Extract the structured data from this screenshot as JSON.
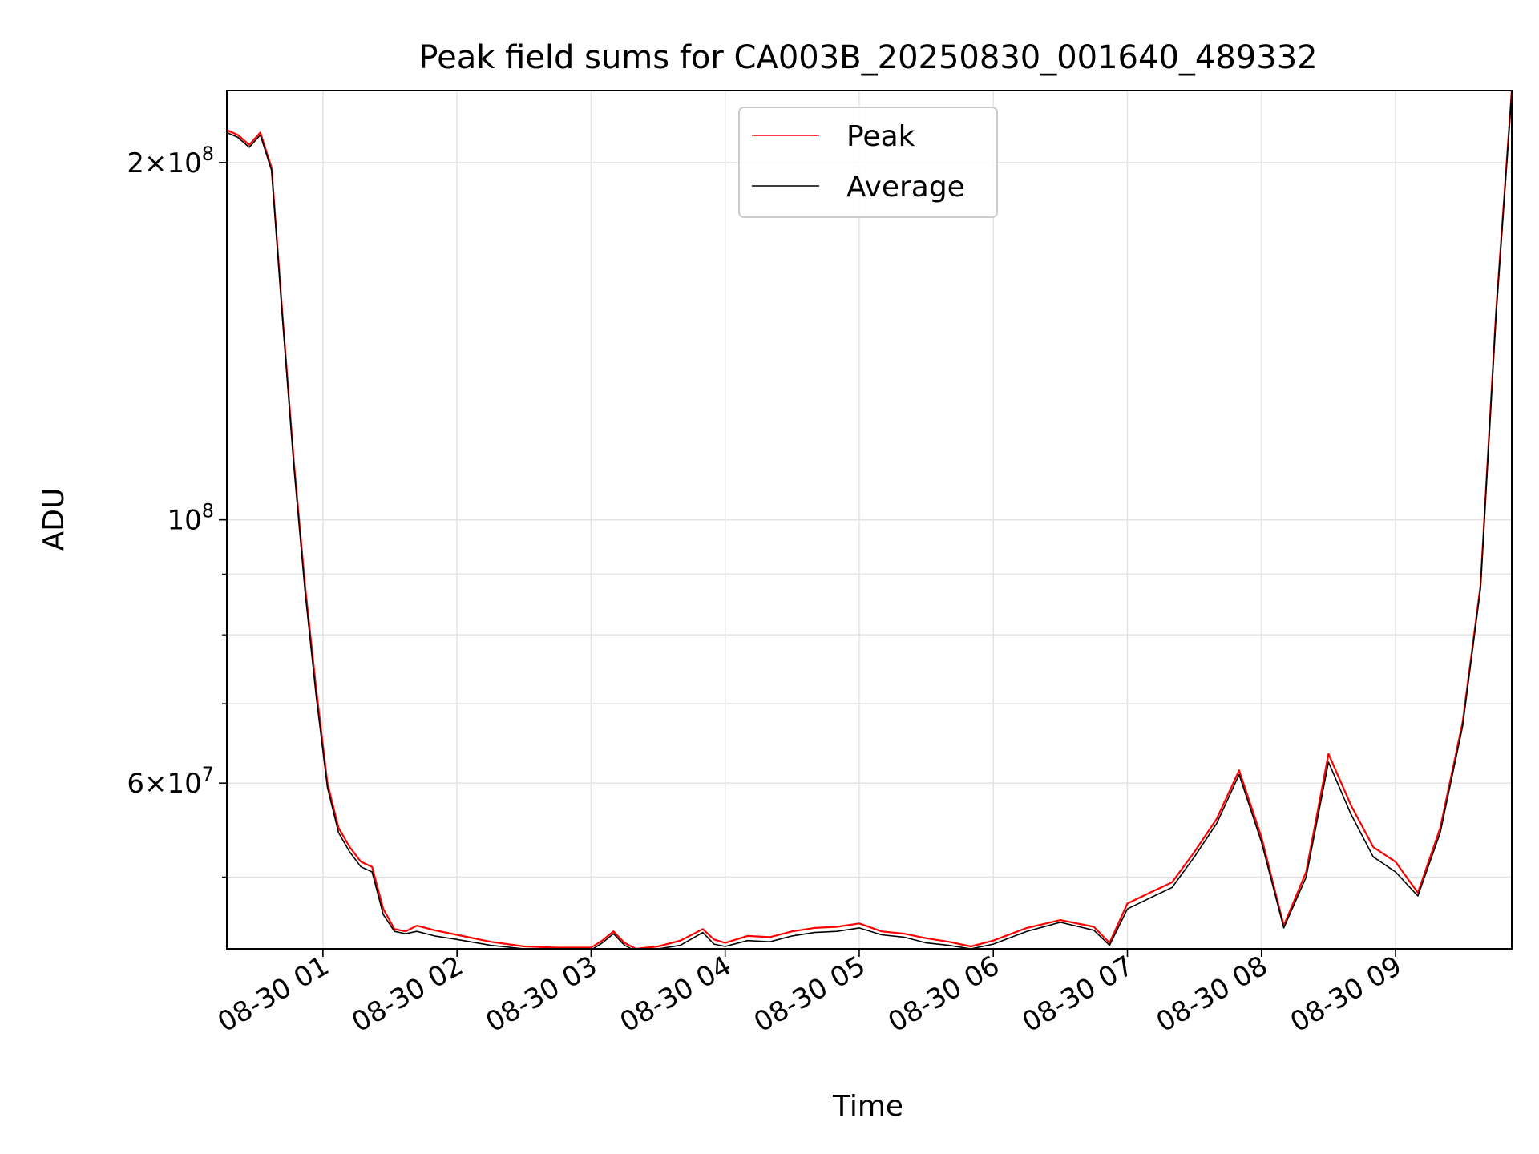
{
  "chart_data": {
    "type": "line",
    "title": "Peak field sums for CA003B_20250830_001640_489332",
    "xlabel": "Time",
    "ylabel": "ADU",
    "y_scale": "log",
    "ylim": [
      43500000,
      230000000
    ],
    "xlim": [
      "08-30 00:17",
      "08-30 09:52"
    ],
    "grid": true,
    "legend_position": "top-center",
    "x_ticks": [
      "08-30 01",
      "08-30 02",
      "08-30 03",
      "08-30 04",
      "08-30 05",
      "08-30 06",
      "08-30 07",
      "08-30 08",
      "08-30 09"
    ],
    "x_tick_times": [
      "08-30 01:00",
      "08-30 02:00",
      "08-30 03:00",
      "08-30 04:00",
      "08-30 05:00",
      "08-30 06:00",
      "08-30 07:00",
      "08-30 08:00",
      "08-30 09:00"
    ],
    "y_ticks_major": [
      {
        "value": 60000000,
        "mantissa": "6",
        "exponent": "7"
      },
      {
        "value": 100000000,
        "mantissa": "",
        "exponent": "8"
      },
      {
        "value": 200000000,
        "mantissa": "2",
        "exponent": "8"
      }
    ],
    "y_ticks_minor": [
      50000000,
      70000000,
      80000000,
      90000000
    ],
    "series": [
      {
        "name": "Peak",
        "color": "#ff0000",
        "x": [
          "08-30 00:17",
          "08-30 00:22",
          "08-30 00:27",
          "08-30 00:32",
          "08-30 00:37",
          "08-30 00:42",
          "08-30 00:47",
          "08-30 00:52",
          "08-30 00:57",
          "08-30 01:02",
          "08-30 01:07",
          "08-30 01:12",
          "08-30 01:17",
          "08-30 01:22",
          "08-30 01:27",
          "08-30 01:32",
          "08-30 01:37",
          "08-30 01:42",
          "08-30 01:50",
          "08-30 02:00",
          "08-30 02:15",
          "08-30 02:30",
          "08-30 02:45",
          "08-30 03:00",
          "08-30 03:05",
          "08-30 03:10",
          "08-30 03:15",
          "08-30 03:20",
          "08-30 03:30",
          "08-30 03:40",
          "08-30 03:50",
          "08-30 03:55",
          "08-30 04:00",
          "08-30 04:10",
          "08-30 04:20",
          "08-30 04:30",
          "08-30 04:40",
          "08-30 04:50",
          "08-30 05:00",
          "08-30 05:10",
          "08-30 05:20",
          "08-30 05:30",
          "08-30 05:40",
          "08-30 05:50",
          "08-30 06:00",
          "08-30 06:15",
          "08-30 06:30",
          "08-30 06:45",
          "08-30 06:52",
          "08-30 07:00",
          "08-30 07:10",
          "08-30 07:20",
          "08-30 07:30",
          "08-30 07:40",
          "08-30 07:50",
          "08-30 08:00",
          "08-30 08:10",
          "08-30 08:20",
          "08-30 08:30",
          "08-30 08:40",
          "08-30 08:50",
          "08-30 09:00",
          "08-30 09:10",
          "08-30 09:20",
          "08-30 09:30",
          "08-30 09:38",
          "08-30 09:45",
          "08-30 09:52"
        ],
        "y": [
          213000000,
          211000000,
          207000000,
          212000000,
          198000000,
          148000000,
          112000000,
          88000000,
          72000000,
          60000000,
          55000000,
          53000000,
          51500000,
          51000000,
          47000000,
          45200000,
          45000000,
          45500000,
          45100000,
          44700000,
          44100000,
          43700000,
          43600000,
          43600000,
          44200000,
          45000000,
          44000000,
          43500000,
          43700000,
          44200000,
          45200000,
          44300000,
          44000000,
          44600000,
          44500000,
          45000000,
          45300000,
          45400000,
          45700000,
          45000000,
          44800000,
          44400000,
          44100000,
          43700000,
          44200000,
          45300000,
          46000000,
          45400000,
          44000000,
          47500000,
          48500000,
          49500000,
          52500000,
          56000000,
          61500000,
          54000000,
          45500000,
          50500000,
          63500000,
          57500000,
          53000000,
          51500000,
          48500000,
          55000000,
          67500000,
          88000000,
          150000000,
          230000000
        ]
      },
      {
        "name": "Average",
        "color": "#000000",
        "x": [
          "08-30 00:17",
          "08-30 00:22",
          "08-30 00:27",
          "08-30 00:32",
          "08-30 00:37",
          "08-30 00:42",
          "08-30 00:47",
          "08-30 00:52",
          "08-30 00:57",
          "08-30 01:02",
          "08-30 01:07",
          "08-30 01:12",
          "08-30 01:17",
          "08-30 01:22",
          "08-30 01:27",
          "08-30 01:32",
          "08-30 01:37",
          "08-30 01:42",
          "08-30 01:50",
          "08-30 02:00",
          "08-30 02:15",
          "08-30 02:30",
          "08-30 02:45",
          "08-30 03:00",
          "08-30 03:05",
          "08-30 03:10",
          "08-30 03:15",
          "08-30 03:20",
          "08-30 03:30",
          "08-30 03:40",
          "08-30 03:50",
          "08-30 03:55",
          "08-30 04:00",
          "08-30 04:10",
          "08-30 04:20",
          "08-30 04:30",
          "08-30 04:40",
          "08-30 04:50",
          "08-30 05:00",
          "08-30 05:10",
          "08-30 05:20",
          "08-30 05:30",
          "08-30 05:40",
          "08-30 05:50",
          "08-30 06:00",
          "08-30 06:15",
          "08-30 06:30",
          "08-30 06:45",
          "08-30 06:52",
          "08-30 07:00",
          "08-30 07:10",
          "08-30 07:20",
          "08-30 07:30",
          "08-30 07:40",
          "08-30 07:50",
          "08-30 08:00",
          "08-30 08:10",
          "08-30 08:20",
          "08-30 08:30",
          "08-30 08:40",
          "08-30 08:50",
          "08-30 09:00",
          "08-30 09:10",
          "08-30 09:20",
          "08-30 09:30",
          "08-30 09:38",
          "08-30 09:45",
          "08-30 09:52"
        ],
        "y": [
          212000000,
          210000000,
          206000000,
          211000000,
          197000000,
          147000000,
          111000000,
          87000000,
          71000000,
          59500000,
          54500000,
          52500000,
          51000000,
          50500000,
          46500000,
          45000000,
          44800000,
          45000000,
          44600000,
          44300000,
          43800000,
          43500000,
          43400000,
          43400000,
          44000000,
          44800000,
          43800000,
          43300000,
          43500000,
          43800000,
          44900000,
          43900000,
          43700000,
          44200000,
          44100000,
          44600000,
          44900000,
          45000000,
          45300000,
          44700000,
          44500000,
          44000000,
          43800000,
          43500000,
          43900000,
          45000000,
          45800000,
          45100000,
          43800000,
          47000000,
          48000000,
          49000000,
          52000000,
          55500000,
          61000000,
          53500000,
          45300000,
          50000000,
          62500000,
          56500000,
          52000000,
          50500000,
          48200000,
          54500000,
          67000000,
          87500000,
          149000000,
          229000000
        ]
      }
    ]
  }
}
